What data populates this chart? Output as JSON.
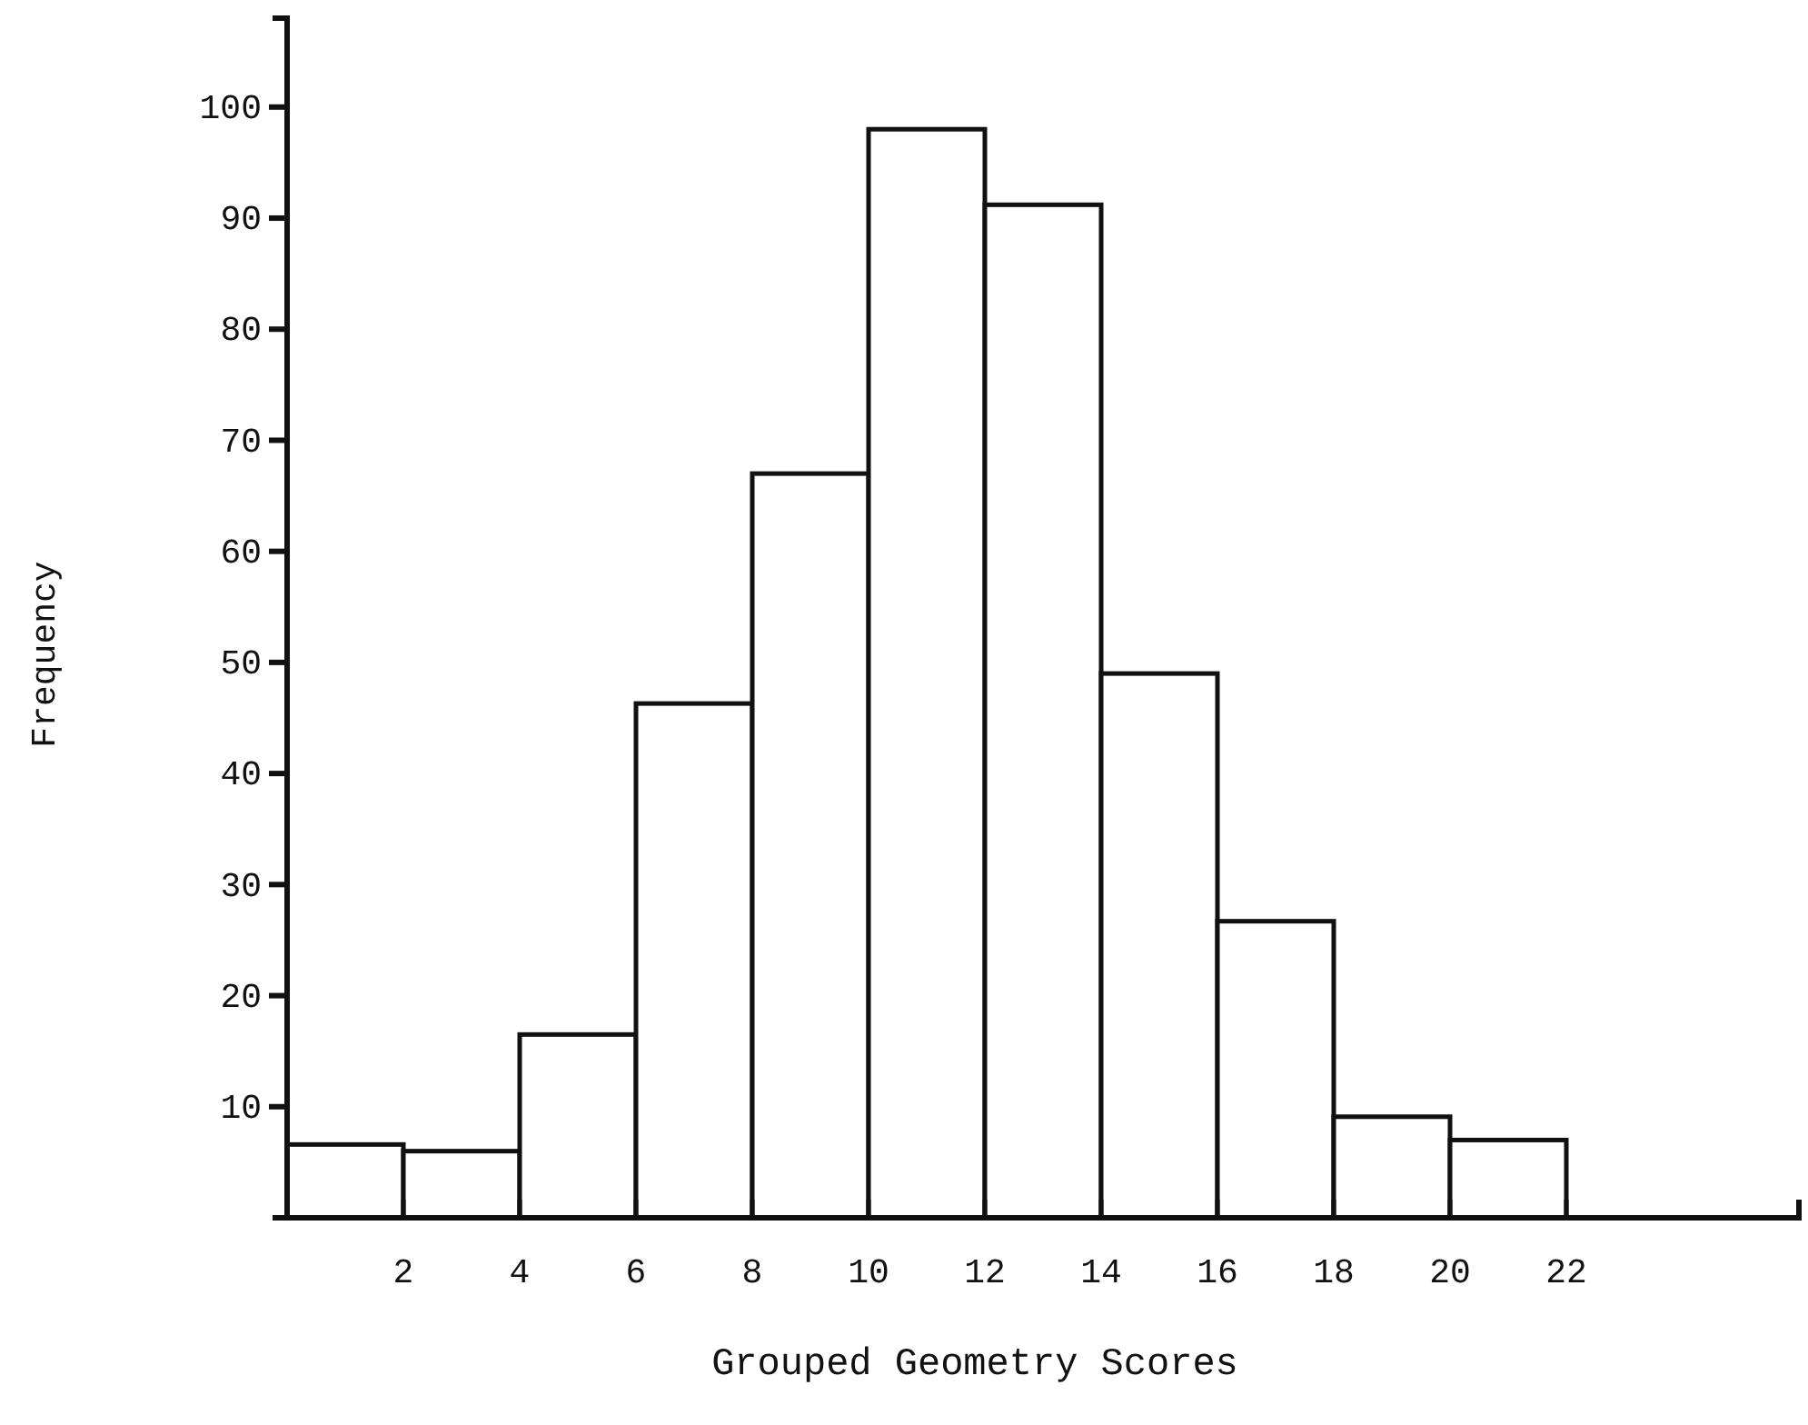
{
  "chart_data": {
    "type": "histogram",
    "xlabel": "Grouped Geometry Scores",
    "ylabel": "Frequency",
    "bins": [
      0,
      2,
      4,
      6,
      8,
      10,
      12,
      14,
      16,
      18,
      20,
      22
    ],
    "values": [
      6.6,
      6,
      16.5,
      46.3,
      67,
      98,
      91.2,
      49,
      26.7,
      9.1,
      7
    ],
    "color": "#ffffff",
    "xlim": [
      0,
      26
    ],
    "xticks": [
      2,
      4,
      6,
      8,
      10,
      12,
      14,
      16,
      18,
      20,
      22
    ],
    "ylim": [
      0,
      108
    ],
    "yticks": [
      10,
      20,
      30,
      40,
      50,
      60,
      70,
      80,
      90,
      100
    ],
    "grid": false
  }
}
